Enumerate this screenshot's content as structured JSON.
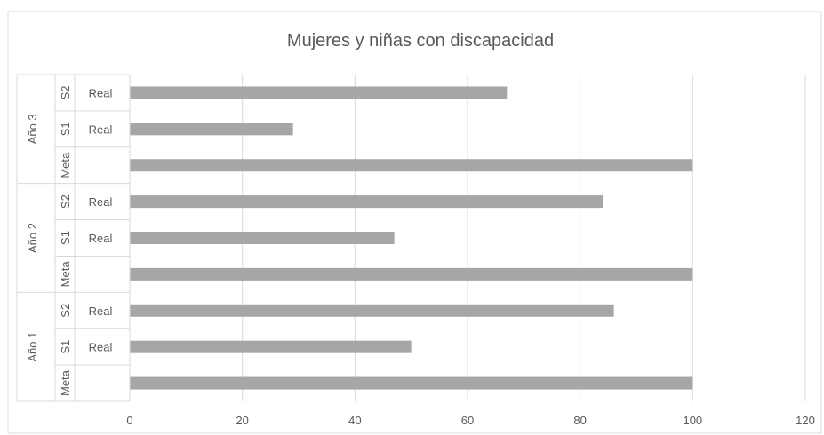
{
  "chart_data": {
    "type": "bar",
    "orientation": "horizontal",
    "title": "Mujeres y niñas con discapacidad",
    "xlabel": "",
    "ylabel": "",
    "xlim": [
      0,
      120
    ],
    "x_ticks": [
      "0",
      "20",
      "40",
      "60",
      "80",
      "100",
      "120"
    ],
    "grid": true,
    "legend": "none",
    "bar_color": "#a6a6a6",
    "groups": [
      {
        "label": "Año 3",
        "bars": [
          {
            "level2": "S2",
            "level3": "Real",
            "value": 67
          },
          {
            "level2": "S1",
            "level3": "Real",
            "value": 29
          },
          {
            "level2": "Meta",
            "level3": "",
            "value": 100
          }
        ]
      },
      {
        "label": "Año 2",
        "bars": [
          {
            "level2": "S2",
            "level3": "Real",
            "value": 84
          },
          {
            "level2": "S1",
            "level3": "Real",
            "value": 47
          },
          {
            "level2": "Meta",
            "level3": "",
            "value": 100
          }
        ]
      },
      {
        "label": "Año 1",
        "bars": [
          {
            "level2": "S2",
            "level3": "Real",
            "value": 86
          },
          {
            "level2": "S1",
            "level3": "Real",
            "value": 50
          },
          {
            "level2": "Meta",
            "level3": "",
            "value": 100
          }
        ]
      }
    ]
  }
}
